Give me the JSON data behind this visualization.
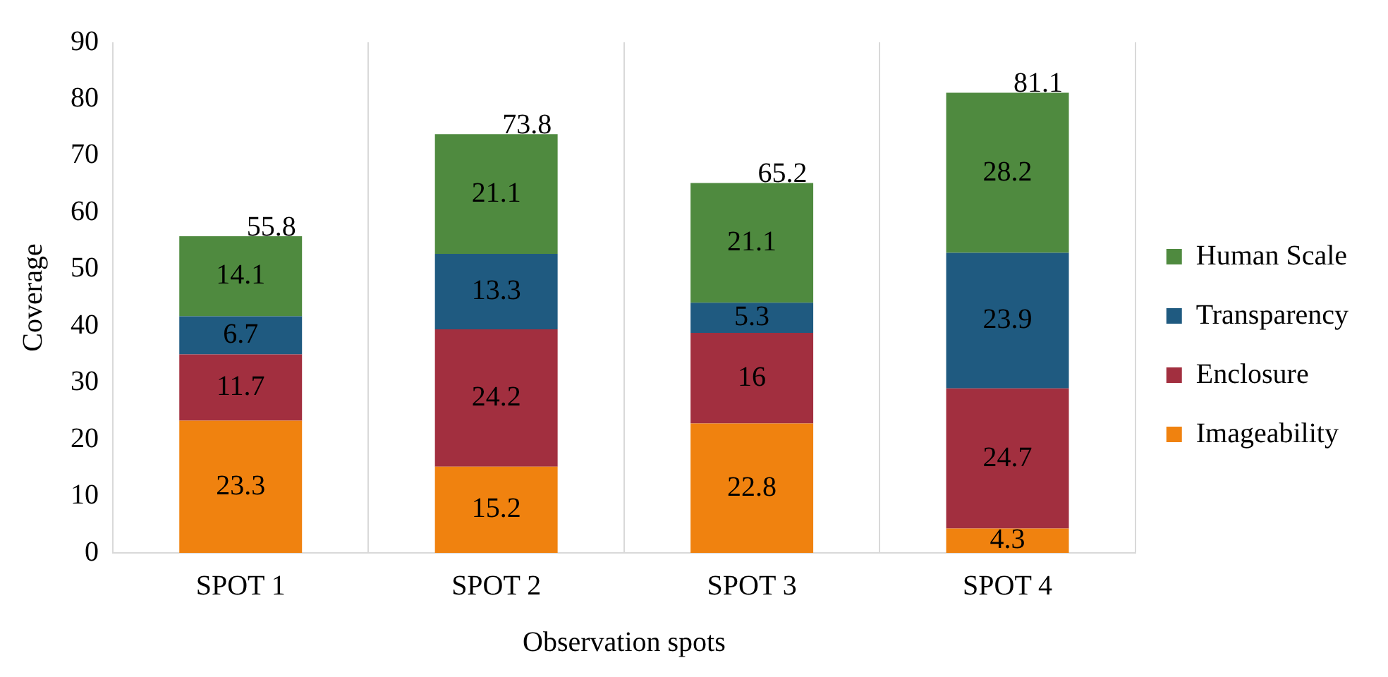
{
  "chart_data": {
    "type": "bar",
    "stacked": true,
    "xlabel": "Observation spots",
    "ylabel": "Coverage",
    "categories": [
      "SPOT 1",
      "SPOT 2",
      "SPOT 3",
      "SPOT 4"
    ],
    "series": [
      {
        "name": "Imageability",
        "color": "#f0820f",
        "values": [
          23.3,
          15.2,
          22.8,
          4.3
        ]
      },
      {
        "name": "Enclosure",
        "color": "#a22f3f",
        "values": [
          11.7,
          24.2,
          16,
          24.7
        ]
      },
      {
        "name": "Transparency",
        "color": "#1f5a80",
        "values": [
          6.7,
          13.3,
          5.3,
          23.9
        ]
      },
      {
        "name": "Human Scale",
        "color": "#4f8a3f",
        "values": [
          14.1,
          21.1,
          21.1,
          28.2
        ]
      }
    ],
    "totals": [
      "55.8",
      "73.8",
      "65.2",
      "81.1"
    ],
    "data_labels": true,
    "ylim": [
      0,
      90
    ],
    "yticks": [
      0,
      10,
      20,
      30,
      40,
      50,
      60,
      70,
      80,
      90
    ],
    "grid": "x",
    "legend": "right"
  }
}
